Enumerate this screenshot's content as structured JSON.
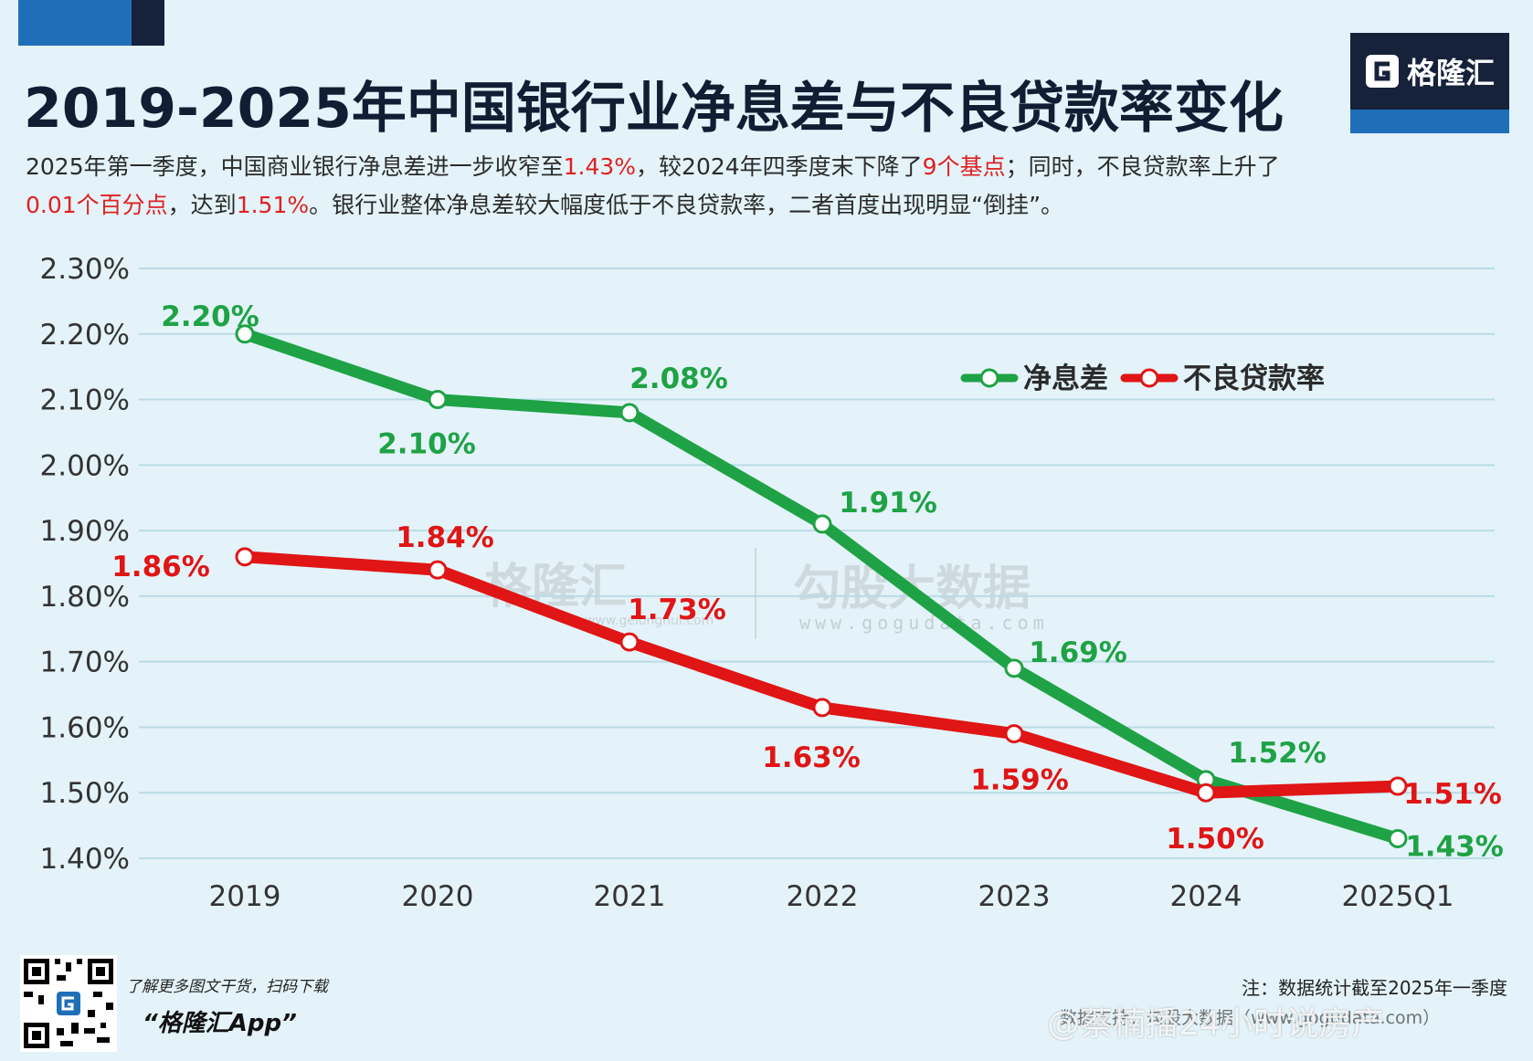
{
  "header": {
    "title": "2019-2025年中国银行业净息差与不良贷款率变化",
    "subtitle_parts": [
      "2025年第一季度，中国商业银行净息差进一步收窄至",
      "1.43%",
      "，较2024年四季度末下降了",
      "9个基点",
      "；同时，不良贷款率上升了",
      "0.01个百分点",
      "，达到",
      "1.51%",
      "。银行业整体净息差较大幅度低于不良贷款率，二者首度出现明显“倒挂”。"
    ]
  },
  "brand": {
    "logo_text": "格隆汇",
    "watermark_logo": "格隆汇",
    "watermark_logo_url": "www.gelonghui.com",
    "watermark_gogu": "勾股大数据",
    "watermark_gogu_url": "www.gogudata.com"
  },
  "footer": {
    "promo_text": "了解更多图文干货，扫码下载",
    "promo_app": "“格隆汇App”",
    "note": "注：数据统计截至2025年一季度",
    "source": "数据支持：勾股大数据（www.gogudata.com）",
    "weibo_watermark": "@蔡楠播24小时说房产"
  },
  "colors": {
    "background": "#e3f3f9",
    "nim": "#1fa245",
    "npl": "#e01515",
    "highlight": "#e02020",
    "brand_dark": "#16213a",
    "brand_blue": "#1f6fb8"
  },
  "chart_data": {
    "type": "line",
    "title": "2019-2025年中国银行业净息差与不良贷款率变化",
    "xlabel": "",
    "ylabel": "",
    "categories": [
      "2019",
      "2020",
      "2021",
      "2022",
      "2023",
      "2024",
      "2025Q1"
    ],
    "ylim": [
      1.4,
      2.3
    ],
    "yticks": [
      2.3,
      2.2,
      2.1,
      2.0,
      1.9,
      1.8,
      1.7,
      1.6,
      1.5,
      1.4
    ],
    "ytick_labels": [
      "2.30%",
      "2.20%",
      "2.10%",
      "2.00%",
      "1.90%",
      "1.80%",
      "1.70%",
      "1.60%",
      "1.50%",
      "1.40%"
    ],
    "grid": true,
    "legend_position": "top-right",
    "series": [
      {
        "name": "净息差",
        "color": "#1fa245",
        "values": [
          2.2,
          2.1,
          2.08,
          1.91,
          1.69,
          1.52,
          1.43
        ],
        "labels": [
          "2.20%",
          "2.10%",
          "2.08%",
          "1.91%",
          "1.69%",
          "1.52%",
          "1.43%"
        ]
      },
      {
        "name": "不良贷款率",
        "color": "#e01515",
        "values": [
          1.86,
          1.84,
          1.73,
          1.63,
          1.59,
          1.5,
          1.51
        ],
        "labels": [
          "1.86%",
          "1.84%",
          "1.73%",
          "1.63%",
          "1.59%",
          "1.50%",
          "1.51%"
        ]
      }
    ]
  }
}
